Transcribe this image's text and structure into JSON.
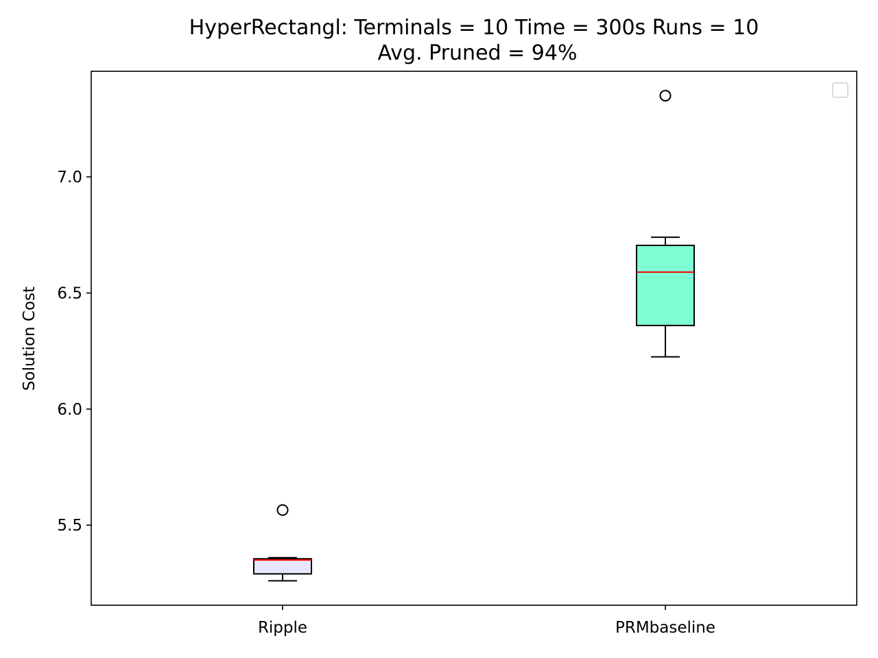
{
  "chart_data": {
    "type": "boxplot",
    "title_line1": "HyperRectangl:  Terminals = 10  Time = 300s  Runs = 10",
    "title_line2": "Avg. Pruned = 94%",
    "xlabel": "",
    "ylabel": "Solution Cost",
    "ylim": [
      5.155,
      7.455
    ],
    "yticks": [
      {
        "value": 5.5,
        "label": "5.5"
      },
      {
        "value": 6.0,
        "label": "6.0"
      },
      {
        "value": 6.5,
        "label": "6.5"
      },
      {
        "value": 7.0,
        "label": "7.0"
      }
    ],
    "categories": [
      "Ripple",
      "PRMbaseline"
    ],
    "boxes": [
      {
        "category": "Ripple",
        "whisker_low": 5.26,
        "q1": 5.29,
        "median": 5.35,
        "q3": 5.355,
        "whisker_high": 5.36,
        "outliers": [
          5.565
        ],
        "fill": "#e6e6fa"
      },
      {
        "category": "PRMbaseline",
        "whisker_low": 6.225,
        "q1": 6.36,
        "median": 6.59,
        "q3": 6.705,
        "whisker_high": 6.74,
        "outliers": [
          7.35
        ],
        "fill": "#7fffd4"
      }
    ],
    "median_color": "#ff0000",
    "legend": {
      "placement": "top-right",
      "entries": []
    },
    "grid": false
  }
}
